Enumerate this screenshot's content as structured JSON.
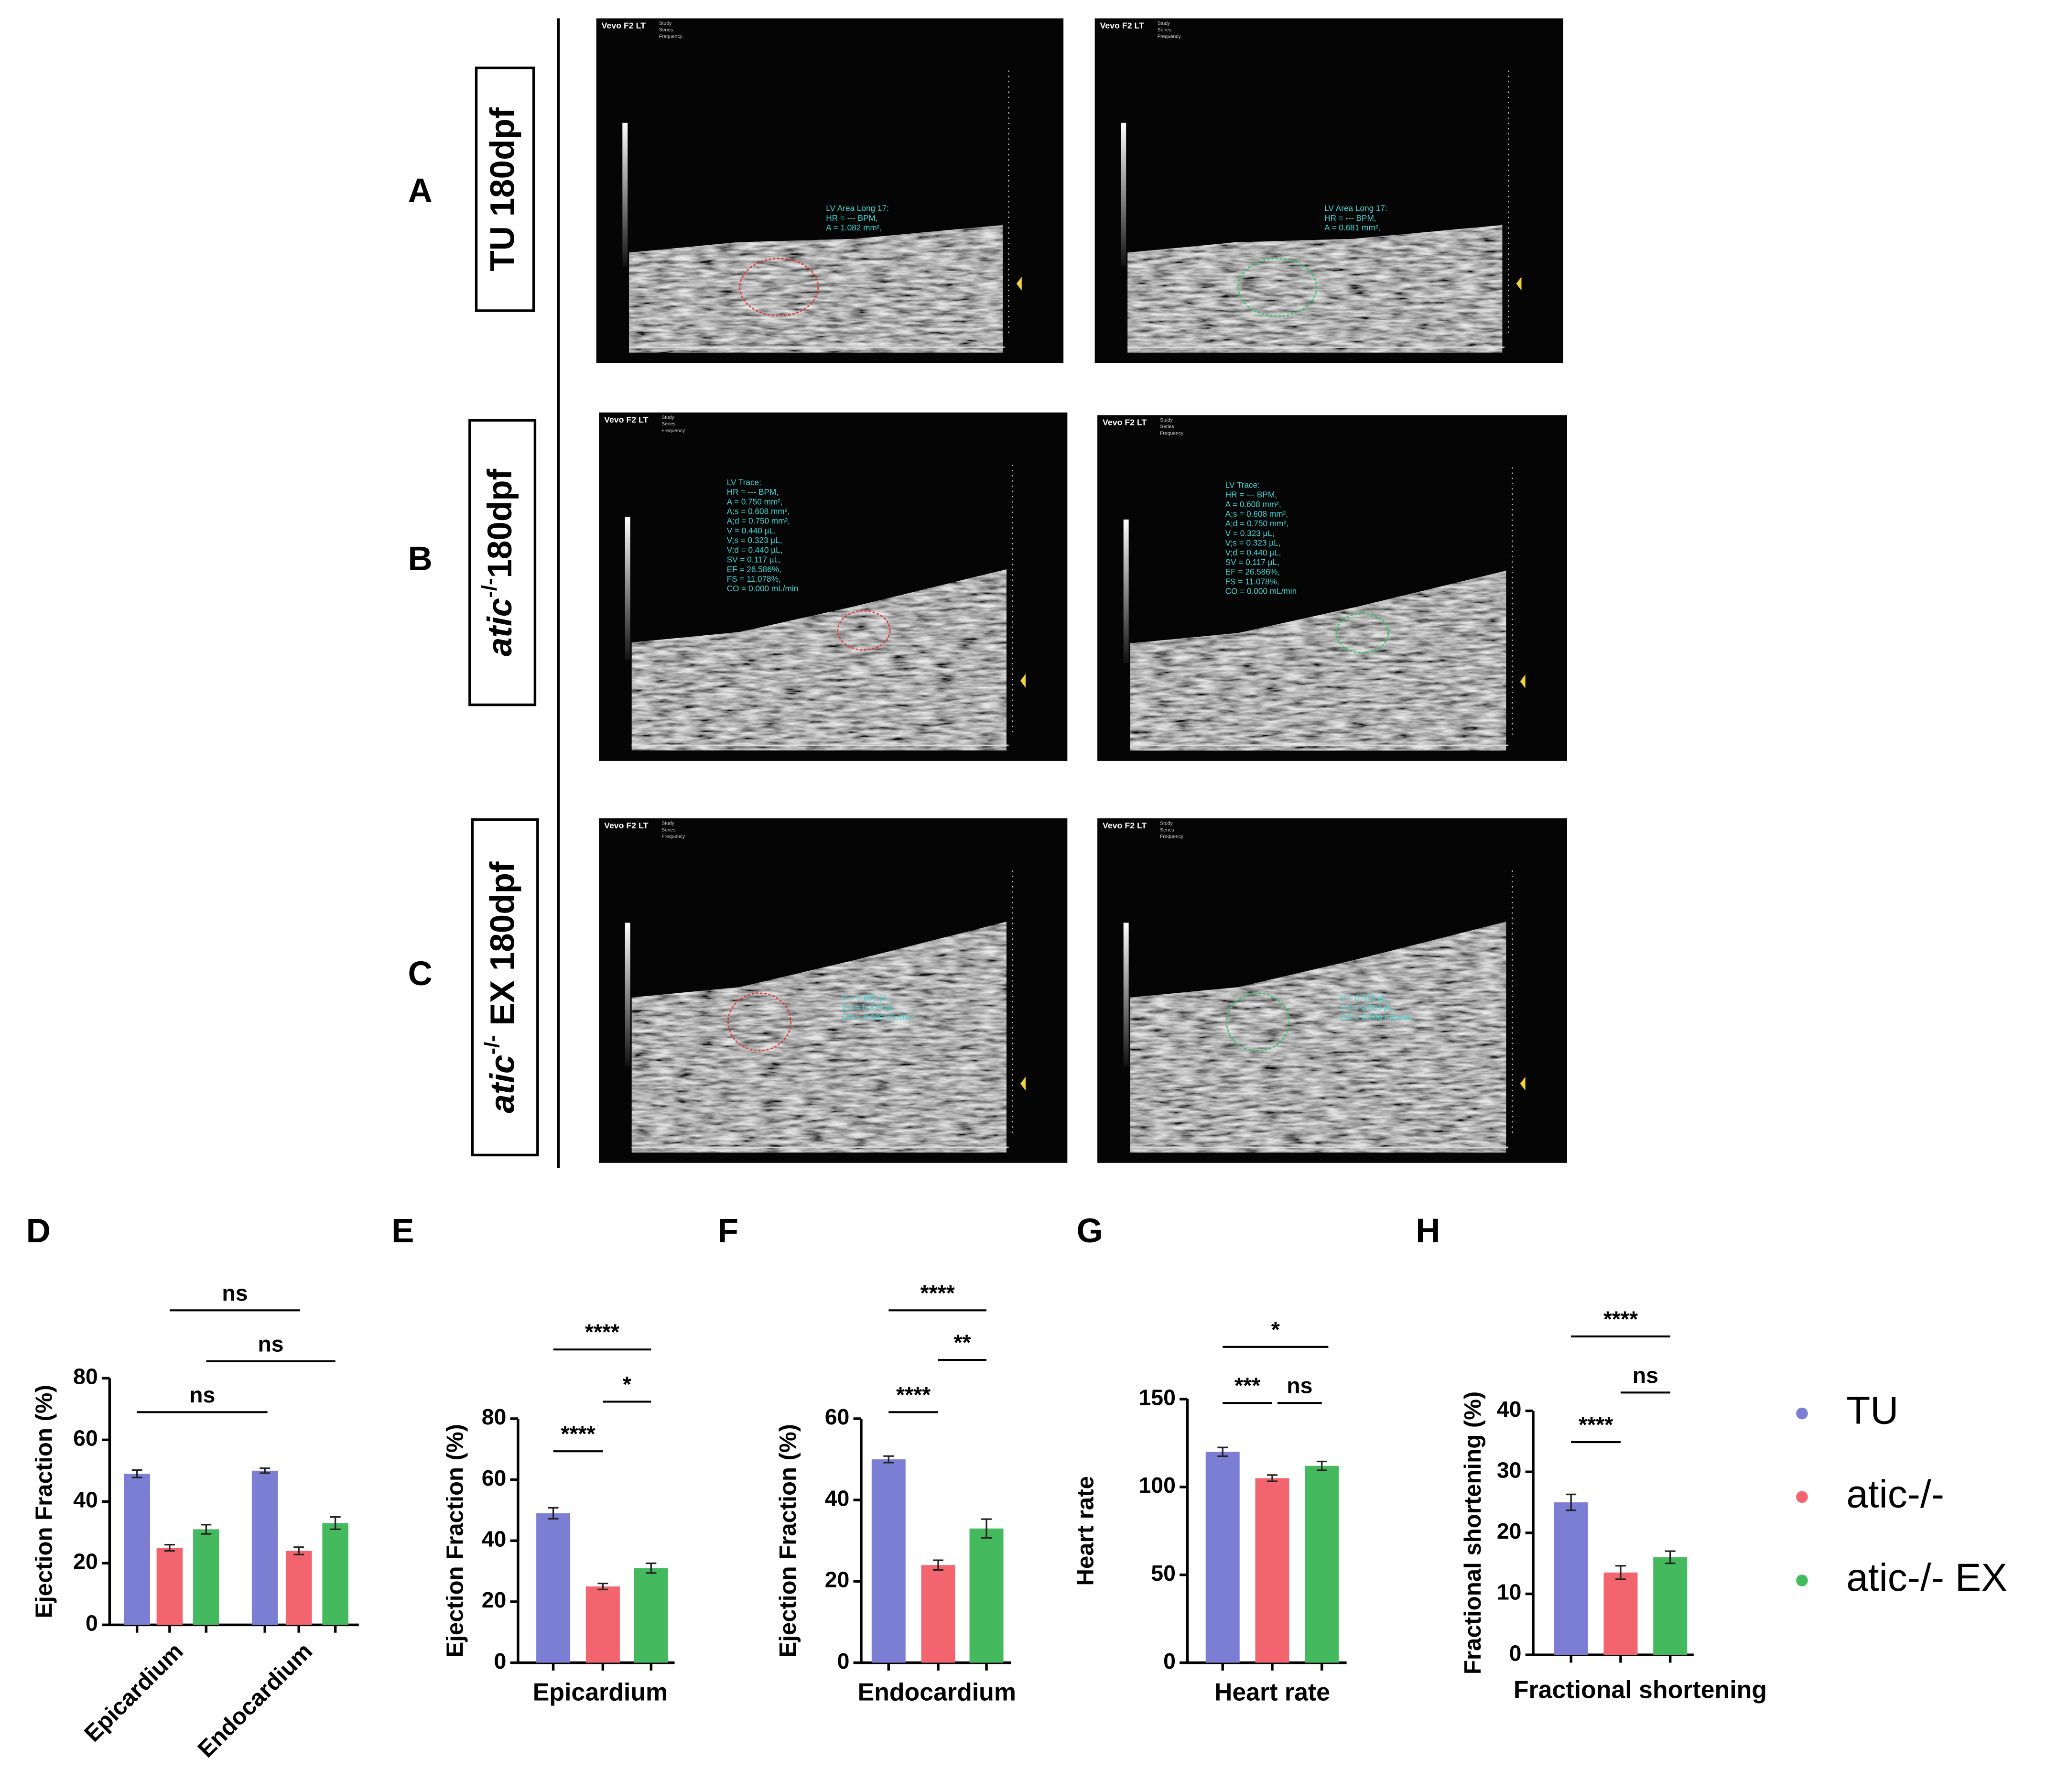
{
  "image_header": {
    "device": "Vevo F2 LT",
    "fields": [
      "Study",
      "Series",
      "Frequency"
    ]
  },
  "rows": [
    {
      "panel": "A",
      "label": [
        "TU 180dpf"
      ],
      "images": [
        {
          "contour": "#e2393b",
          "lines": [
            "LV Area Long 17:",
            "HR = --- BPM,",
            "A = 1.082 mm²,"
          ]
        },
        {
          "contour": "#35c36a",
          "lines": [
            "LV Area Long 17:",
            "HR = --- BPM,",
            "A = 0.681 mm²,"
          ]
        }
      ]
    },
    {
      "panel": "B",
      "label": [
        "atic",
        "-/-",
        "180dpf"
      ],
      "images": [
        {
          "contour": "#e2393b",
          "lines": [
            "LV Trace:",
            "HR = --- BPM,",
            "A = 0.750 mm²,",
            "A;s = 0.608 mm²,",
            "A;d = 0.750 mm²,",
            "V = 0.440 µL,",
            "V;s = 0.323 µL,",
            "V;d = 0.440 µL,",
            "SV = 0.117 µL,",
            "EF = 26.586%,",
            "FS = 11.078%,",
            "CO = 0.000 mL/min"
          ]
        },
        {
          "contour": "#35c36a",
          "lines": [
            "LV Trace:",
            "HR = --- BPM,",
            "A = 0.608 mm²,",
            "A;s = 0.608 mm²,",
            "A;d = 0.750 mm²,",
            "V = 0.323 µL,",
            "V;s = 0.323 µL,",
            "V;d = 0.440 µL,",
            "SV = 0.117 µL,",
            "EF = 26.586%,",
            "FS = 11.078%,",
            "CO = 0.000 mL/min"
          ]
        }
      ]
    },
    {
      "panel": "C",
      "label": [
        "atic",
        "-/-",
        " EX 180dpf"
      ],
      "images": [
        {
          "contour": "#e2393b",
          "lines": [
            "V = 0.603 µL,",
            "V;s = 0.379 µL,",
            "CO = 0.000 mL/min"
          ]
        },
        {
          "contour": "#35c36a",
          "lines": [
            "V = 0.379 µL,",
            "V;s = 0.603 µL,",
            "CO = 0.000 mL/min"
          ]
        }
      ]
    }
  ],
  "chart_data": [
    {
      "type": "bar",
      "panel": "D",
      "y_label": "Ejection Fraction (%)",
      "categories": [
        "Epicardium",
        "Endocardium"
      ],
      "series": [
        {
          "name": "TU",
          "color": "#7b7ed3",
          "values": [
            49,
            50
          ],
          "errors": [
            1.2,
            0.8
          ]
        },
        {
          "name": "atic-/-",
          "color": "#f2646e",
          "values": [
            25,
            24
          ],
          "errors": [
            1.0,
            1.2
          ]
        },
        {
          "name": "atic-/- EX",
          "color": "#45b95e",
          "values": [
            31,
            33
          ],
          "errors": [
            1.5,
            2.0
          ]
        }
      ],
      "ylim": [
        0,
        80
      ],
      "yticks": [
        0,
        20,
        40,
        60,
        80
      ],
      "significance": [
        "ns",
        "ns",
        "ns"
      ]
    },
    {
      "type": "bar",
      "panel": "E",
      "y_label": "Ejection Fraction (%)",
      "categories": [
        "Epicardium"
      ],
      "series": [
        {
          "name": "TU",
          "color": "#7b7ed3",
          "values": [
            49
          ],
          "errors": [
            1.8
          ]
        },
        {
          "name": "atic-/-",
          "color": "#f2646e",
          "values": [
            25
          ],
          "errors": [
            1.0
          ]
        },
        {
          "name": "atic-/- EX",
          "color": "#45b95e",
          "values": [
            31
          ],
          "errors": [
            1.6
          ]
        }
      ],
      "ylim": [
        0,
        80
      ],
      "yticks": [
        0,
        20,
        40,
        60,
        80
      ],
      "significance": [
        "****",
        "*",
        "****"
      ]
    },
    {
      "type": "bar",
      "panel": "F",
      "y_label": "Ejection Fraction (%)",
      "categories": [
        "Endocardium"
      ],
      "series": [
        {
          "name": "TU",
          "color": "#7b7ed3",
          "values": [
            50
          ],
          "errors": [
            0.8
          ]
        },
        {
          "name": "atic-/-",
          "color": "#f2646e",
          "values": [
            24
          ],
          "errors": [
            1.2
          ]
        },
        {
          "name": "atic-/- EX",
          "color": "#45b95e",
          "values": [
            33
          ],
          "errors": [
            2.3
          ]
        }
      ],
      "ylim": [
        0,
        60
      ],
      "yticks": [
        0,
        20,
        40,
        60
      ],
      "significance": [
        "****",
        "**",
        "****"
      ]
    },
    {
      "type": "bar",
      "panel": "G",
      "y_label": "Heart rate",
      "categories": [
        "Heart rate"
      ],
      "series": [
        {
          "name": "TU",
          "color": "#7b7ed3",
          "values": [
            120
          ],
          "errors": [
            2.5
          ]
        },
        {
          "name": "atic-/-",
          "color": "#f2646e",
          "values": [
            105
          ],
          "errors": [
            1.8
          ]
        },
        {
          "name": "atic-/- EX",
          "color": "#45b95e",
          "values": [
            112
          ],
          "errors": [
            2.5
          ]
        }
      ],
      "ylim": [
        0,
        150
      ],
      "yticks": [
        0,
        50,
        100,
        150
      ],
      "significance": [
        "***",
        "ns",
        "*"
      ]
    },
    {
      "type": "bar",
      "panel": "H",
      "y_label": "Fractional shortening (%)",
      "categories": [
        "Fractional shortening"
      ],
      "series": [
        {
          "name": "TU",
          "color": "#7b7ed3",
          "values": [
            25
          ],
          "errors": [
            1.3
          ]
        },
        {
          "name": "atic-/-",
          "color": "#f2646e",
          "values": [
            13.5
          ],
          "errors": [
            1.1
          ]
        },
        {
          "name": "atic-/- EX",
          "color": "#45b95e",
          "values": [
            16
          ],
          "errors": [
            1.0
          ]
        }
      ],
      "ylim": [
        0,
        40
      ],
      "yticks": [
        0,
        10,
        20,
        30,
        40
      ],
      "significance": [
        "****",
        "ns",
        "****"
      ],
      "legend": true
    }
  ]
}
